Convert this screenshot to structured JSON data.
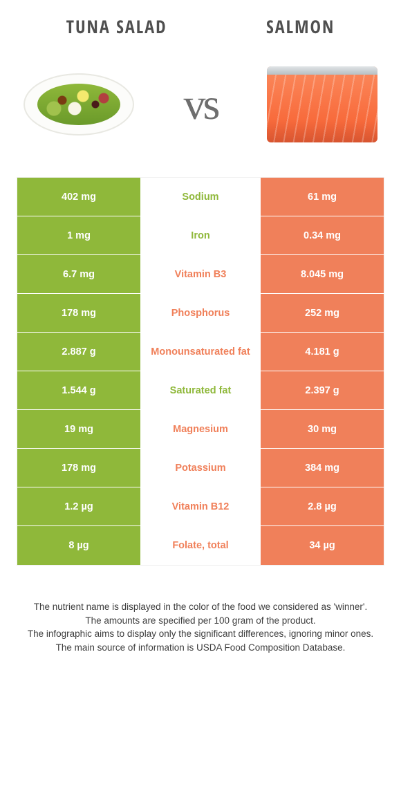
{
  "colors": {
    "left_bg": "#8fb83a",
    "right_bg": "#f0805a",
    "left_text": "#8fb83a",
    "right_text": "#f0805a",
    "cell_text": "#ffffff",
    "row_border": "#ffffff"
  },
  "header": {
    "left_title": "Tuna salad",
    "right_title": "Salmon",
    "vs": "vs"
  },
  "rows": [
    {
      "left": "402 mg",
      "label": "Sodium",
      "right": "61 mg",
      "winner": "left"
    },
    {
      "left": "1 mg",
      "label": "Iron",
      "right": "0.34 mg",
      "winner": "left"
    },
    {
      "left": "6.7 mg",
      "label": "Vitamin B3",
      "right": "8.045 mg",
      "winner": "right"
    },
    {
      "left": "178 mg",
      "label": "Phosphorus",
      "right": "252 mg",
      "winner": "right"
    },
    {
      "left": "2.887 g",
      "label": "Monounsaturated fat",
      "right": "4.181 g",
      "winner": "right"
    },
    {
      "left": "1.544 g",
      "label": "Saturated fat",
      "right": "2.397 g",
      "winner": "left"
    },
    {
      "left": "19 mg",
      "label": "Magnesium",
      "right": "30 mg",
      "winner": "right"
    },
    {
      "left": "178 mg",
      "label": "Potassium",
      "right": "384 mg",
      "winner": "right"
    },
    {
      "left": "1.2 µg",
      "label": "Vitamin B12",
      "right": "2.8 µg",
      "winner": "right"
    },
    {
      "left": "8 µg",
      "label": "Folate, total",
      "right": "34 µg",
      "winner": "right"
    }
  ],
  "footnotes": [
    "The nutrient name is displayed in the color of the food we considered as 'winner'.",
    "The amounts are specified per 100 gram of the product.",
    "The infographic aims to display only the significant differences, ignoring minor ones.",
    "The main source of information is USDA Food Composition Database."
  ]
}
